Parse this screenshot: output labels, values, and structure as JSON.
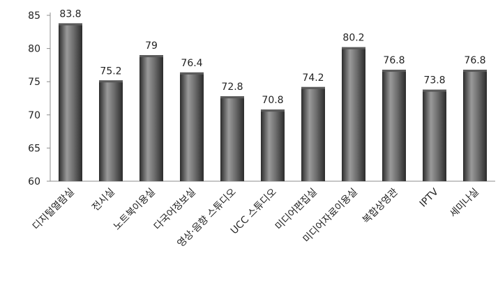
{
  "chart_data": {
    "type": "bar",
    "title": "",
    "xlabel": "",
    "ylabel": "",
    "categories": [
      "디지털열람실",
      "전시실",
      "노트북이용실",
      "다국어정보실",
      "영상·음향 스튜디오",
      "UCC 스튜디오",
      "미디어편집실",
      "미디어자료이용실",
      "복합상영관",
      "IPTV",
      "세미나실"
    ],
    "values": [
      83.8,
      75.2,
      79,
      76.4,
      72.8,
      70.8,
      74.2,
      80.2,
      76.8,
      73.8,
      76.8
    ],
    "value_labels": [
      "83.8",
      "75.2",
      "79",
      "76.4",
      "72.8",
      "70.8",
      "74.2",
      "80.2",
      "76.8",
      "73.8",
      "76.8"
    ],
    "ylim": [
      60,
      85
    ],
    "y_ticks": [
      60,
      65,
      70,
      75,
      80,
      85
    ],
    "grid": false,
    "legend": "none",
    "colors": {
      "bar_dark": "#2b2b2b",
      "bar_mid": "#6a6a6a",
      "bar_light": "#9a9a9a",
      "bar_top": "#5a5a5a",
      "axis": "#8c8c8c",
      "text": "#222222"
    }
  }
}
